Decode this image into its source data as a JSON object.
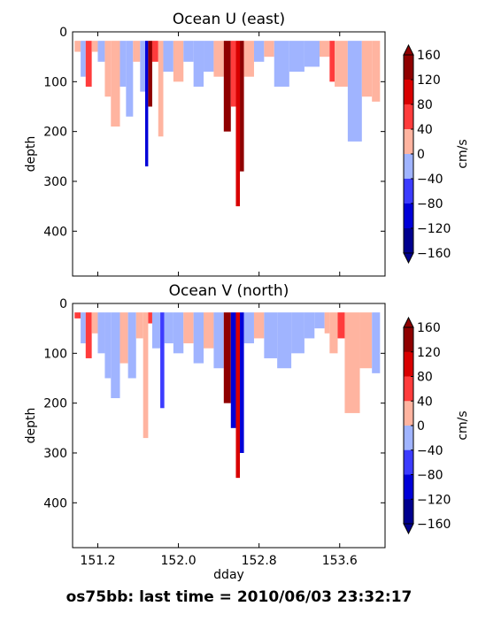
{
  "figure": {
    "footer": "os75bb: last time = 2010/06/03 23:32:17"
  },
  "colors": {
    "cbar": [
      "#00008f",
      "#0000d8",
      "#3c3cff",
      "#a0b4ff",
      "#ffb4a0",
      "#ff3c3c",
      "#d80000",
      "#8f0000"
    ],
    "frame": "#000000"
  },
  "chart_data": [
    {
      "type": "heatmap",
      "title": "Ocean U (east)",
      "xlabel": "",
      "ylabel": "depth",
      "xlim": [
        150.95,
        154.05
      ],
      "ylim": [
        490,
        0
      ],
      "xticks": [
        151.2,
        152.0,
        152.8,
        153.6
      ],
      "xtick_labels": [
        "",
        "",
        "",
        ""
      ],
      "yticks": [
        0,
        100,
        200,
        300,
        400
      ],
      "yticks_labels": [
        "0",
        "100",
        "200",
        "300",
        "400"
      ],
      "colorbar": {
        "label": "cm/s",
        "levels": [
          -160,
          -120,
          -80,
          -40,
          0,
          40,
          80,
          120,
          160
        ],
        "tick_labels": [
          "−160",
          "−120",
          "−80",
          "−40",
          "0",
          "40",
          "80",
          "120",
          "160"
        ],
        "extend": "both"
      },
      "cells": [
        {
          "x0": 150.97,
          "x1": 151.03,
          "dmax": 40,
          "c": 4
        },
        {
          "x0": 151.03,
          "x1": 151.08,
          "dmax": 90,
          "c": 3
        },
        {
          "x0": 151.08,
          "x1": 151.14,
          "dmax": 110,
          "c": 5
        },
        {
          "x0": 151.14,
          "x1": 151.2,
          "dmax": 40,
          "c": 4
        },
        {
          "x0": 151.2,
          "x1": 151.27,
          "dmax": 60,
          "c": 3
        },
        {
          "x0": 151.27,
          "x1": 151.33,
          "dmax": 130,
          "c": 4
        },
        {
          "x0": 151.33,
          "x1": 151.42,
          "dmax": 190,
          "c": 4
        },
        {
          "x0": 151.42,
          "x1": 151.48,
          "dmax": 110,
          "c": 3
        },
        {
          "x0": 151.48,
          "x1": 151.55,
          "dmax": 170,
          "c": 3
        },
        {
          "x0": 151.55,
          "x1": 151.62,
          "dmax": 60,
          "c": 4
        },
        {
          "x0": 151.62,
          "x1": 151.67,
          "dmax": 120,
          "c": 3
        },
        {
          "x0": 151.67,
          "x1": 151.7,
          "dmax": 270,
          "c": 1
        },
        {
          "x0": 151.7,
          "x1": 151.74,
          "dmax": 150,
          "c": 7
        },
        {
          "x0": 151.74,
          "x1": 151.8,
          "dmax": 60,
          "c": 5
        },
        {
          "x0": 151.8,
          "x1": 151.85,
          "dmax": 210,
          "c": 4
        },
        {
          "x0": 151.85,
          "x1": 151.95,
          "dmax": 80,
          "c": 3
        },
        {
          "x0": 151.95,
          "x1": 152.05,
          "dmax": 100,
          "c": 4
        },
        {
          "x0": 152.05,
          "x1": 152.15,
          "dmax": 60,
          "c": 3
        },
        {
          "x0": 152.15,
          "x1": 152.25,
          "dmax": 110,
          "c": 3
        },
        {
          "x0": 152.25,
          "x1": 152.35,
          "dmax": 80,
          "c": 3
        },
        {
          "x0": 152.35,
          "x1": 152.45,
          "dmax": 90,
          "c": 4
        },
        {
          "x0": 152.45,
          "x1": 152.52,
          "dmax": 200,
          "c": 7
        },
        {
          "x0": 152.52,
          "x1": 152.57,
          "dmax": 150,
          "c": 5
        },
        {
          "x0": 152.57,
          "x1": 152.61,
          "dmax": 350,
          "c": 6
        },
        {
          "x0": 152.61,
          "x1": 152.65,
          "dmax": 280,
          "c": 7
        },
        {
          "x0": 152.65,
          "x1": 152.75,
          "dmax": 90,
          "c": 4
        },
        {
          "x0": 152.75,
          "x1": 152.85,
          "dmax": 60,
          "c": 3
        },
        {
          "x0": 152.85,
          "x1": 152.95,
          "dmax": 50,
          "c": 4
        },
        {
          "x0": 152.95,
          "x1": 153.1,
          "dmax": 110,
          "c": 3
        },
        {
          "x0": 153.1,
          "x1": 153.25,
          "dmax": 80,
          "c": 3
        },
        {
          "x0": 153.25,
          "x1": 153.4,
          "dmax": 70,
          "c": 3
        },
        {
          "x0": 153.4,
          "x1": 153.5,
          "dmax": 50,
          "c": 4
        },
        {
          "x0": 153.5,
          "x1": 153.55,
          "dmax": 100,
          "c": 5
        },
        {
          "x0": 153.55,
          "x1": 153.68,
          "dmax": 110,
          "c": 4
        },
        {
          "x0": 153.68,
          "x1": 153.82,
          "dmax": 220,
          "c": 3
        },
        {
          "x0": 153.82,
          "x1": 153.92,
          "dmax": 130,
          "c": 4
        },
        {
          "x0": 153.92,
          "x1": 154.0,
          "dmax": 140,
          "c": 4
        }
      ]
    },
    {
      "type": "heatmap",
      "title": "Ocean V (north)",
      "xlabel": "dday",
      "ylabel": "depth",
      "xlim": [
        150.95,
        154.05
      ],
      "ylim": [
        490,
        0
      ],
      "xticks": [
        151.2,
        152.0,
        152.8,
        153.6
      ],
      "xtick_labels": [
        "151.2",
        "152.0",
        "152.8",
        "153.6"
      ],
      "yticks": [
        0,
        100,
        200,
        300,
        400
      ],
      "yticks_labels": [
        "0",
        "100",
        "200",
        "300",
        "400"
      ],
      "colorbar": {
        "label": "cm/s",
        "levels": [
          -160,
          -120,
          -80,
          -40,
          0,
          40,
          80,
          120,
          160
        ],
        "tick_labels": [
          "−160",
          "−120",
          "−80",
          "−40",
          "0",
          "40",
          "80",
          "120",
          "160"
        ],
        "extend": "both"
      },
      "cells": [
        {
          "x0": 150.97,
          "x1": 151.03,
          "dmax": 30,
          "c": 5
        },
        {
          "x0": 151.03,
          "x1": 151.08,
          "dmax": 80,
          "c": 3
        },
        {
          "x0": 151.08,
          "x1": 151.14,
          "dmax": 110,
          "c": 5
        },
        {
          "x0": 151.14,
          "x1": 151.2,
          "dmax": 60,
          "c": 4
        },
        {
          "x0": 151.2,
          "x1": 151.27,
          "dmax": 100,
          "c": 3
        },
        {
          "x0": 151.27,
          "x1": 151.33,
          "dmax": 150,
          "c": 3
        },
        {
          "x0": 151.33,
          "x1": 151.42,
          "dmax": 190,
          "c": 3
        },
        {
          "x0": 151.42,
          "x1": 151.5,
          "dmax": 120,
          "c": 4
        },
        {
          "x0": 151.5,
          "x1": 151.58,
          "dmax": 150,
          "c": 3
        },
        {
          "x0": 151.58,
          "x1": 151.65,
          "dmax": 70,
          "c": 4
        },
        {
          "x0": 151.65,
          "x1": 151.7,
          "dmax": 270,
          "c": 4
        },
        {
          "x0": 151.7,
          "x1": 151.74,
          "dmax": 40,
          "c": 5
        },
        {
          "x0": 151.74,
          "x1": 151.82,
          "dmax": 90,
          "c": 3
        },
        {
          "x0": 151.82,
          "x1": 151.86,
          "dmax": 210,
          "c": 2
        },
        {
          "x0": 151.86,
          "x1": 151.95,
          "dmax": 80,
          "c": 3
        },
        {
          "x0": 151.95,
          "x1": 152.05,
          "dmax": 100,
          "c": 3
        },
        {
          "x0": 152.05,
          "x1": 152.15,
          "dmax": 80,
          "c": 4
        },
        {
          "x0": 152.15,
          "x1": 152.25,
          "dmax": 120,
          "c": 3
        },
        {
          "x0": 152.25,
          "x1": 152.35,
          "dmax": 90,
          "c": 4
        },
        {
          "x0": 152.35,
          "x1": 152.45,
          "dmax": 130,
          "c": 3
        },
        {
          "x0": 152.45,
          "x1": 152.52,
          "dmax": 200,
          "c": 7
        },
        {
          "x0": 152.52,
          "x1": 152.57,
          "dmax": 250,
          "c": 1
        },
        {
          "x0": 152.57,
          "x1": 152.61,
          "dmax": 350,
          "c": 6
        },
        {
          "x0": 152.61,
          "x1": 152.65,
          "dmax": 300,
          "c": 1
        },
        {
          "x0": 152.65,
          "x1": 152.75,
          "dmax": 80,
          "c": 3
        },
        {
          "x0": 152.75,
          "x1": 152.85,
          "dmax": 70,
          "c": 4
        },
        {
          "x0": 152.85,
          "x1": 152.98,
          "dmax": 110,
          "c": 3
        },
        {
          "x0": 152.98,
          "x1": 153.12,
          "dmax": 130,
          "c": 3
        },
        {
          "x0": 153.12,
          "x1": 153.25,
          "dmax": 100,
          "c": 3
        },
        {
          "x0": 153.25,
          "x1": 153.35,
          "dmax": 70,
          "c": 3
        },
        {
          "x0": 153.35,
          "x1": 153.45,
          "dmax": 50,
          "c": 3
        },
        {
          "x0": 153.45,
          "x1": 153.5,
          "dmax": 60,
          "c": 4
        },
        {
          "x0": 153.5,
          "x1": 153.58,
          "dmax": 100,
          "c": 4
        },
        {
          "x0": 153.58,
          "x1": 153.65,
          "dmax": 70,
          "c": 5
        },
        {
          "x0": 153.65,
          "x1": 153.8,
          "dmax": 220,
          "c": 4
        },
        {
          "x0": 153.8,
          "x1": 153.92,
          "dmax": 130,
          "c": 4
        },
        {
          "x0": 153.92,
          "x1": 154.0,
          "dmax": 140,
          "c": 3
        }
      ]
    }
  ]
}
